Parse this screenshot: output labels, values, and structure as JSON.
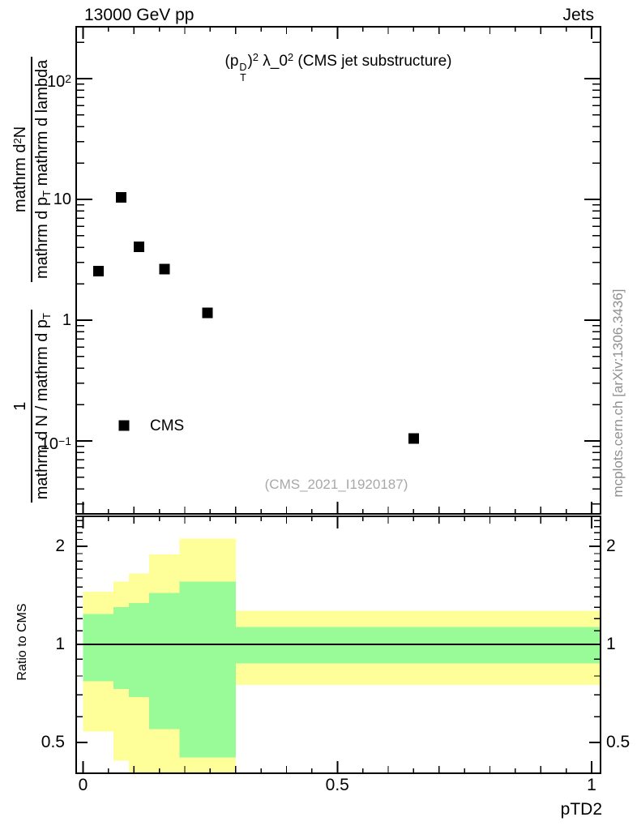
{
  "header": {
    "left": "13000 GeV pp",
    "right": "Jets"
  },
  "title": {
    "open": "(p",
    "p_sup": "D",
    "p_sub": "T",
    "close": ")",
    "exp1": "2",
    "mid": " λ_0",
    "exp2": "2",
    "rest": " (CMS jet substructure)"
  },
  "ylabel": {
    "f1_num": "1",
    "f1_den": "mathrm d N / mathrm d p",
    "f1_den_sub": "T",
    "f2_num_a": "mathrm d",
    "f2_num_sup": "2",
    "f2_num_b": "N",
    "f2_den_a": "mathrm d p",
    "f2_den_sub": "T",
    "f2_den_b": " mathrm d lambda"
  },
  "legend": {
    "label": "CMS",
    "marker": "filled-square",
    "marker_color": "#000000"
  },
  "watermark": "(CMS_2021_I1920187)",
  "side_note": "mcplots.cern.ch [arXiv:1306.3436]",
  "ratio_label": "Ratio to CMS",
  "xlabel": "pTD2",
  "colors": {
    "band_total": "#feff99",
    "band_stat": "#99fb98",
    "marker": "#000000",
    "frame": "#000000",
    "gray_text": "#8f8f8f"
  },
  "chart_data": {
    "type": "scatter",
    "title": "(p_T^D)^2 λ_0^2 (CMS jet substructure)",
    "xlabel": "pTD2",
    "ylabel": "1/(mathrm d N / mathrm d p_T) mathrm d^2 N /(mathrm d p_T mathrm d lambda)",
    "x_range": [
      -0.0135,
      1.0175
    ],
    "y_scale": "log",
    "y_range": [
      0.025,
      269
    ],
    "grid": false,
    "legend_position": "inside-left-bottom",
    "x_ticks": [
      {
        "v": 0,
        "label": "0"
      },
      {
        "v": 0.5,
        "label": "0.5"
      },
      {
        "v": 1,
        "label": "1"
      }
    ],
    "y_ticks": [
      {
        "v": 100,
        "base": "10",
        "sup": "2"
      },
      {
        "v": 10,
        "base": "10",
        "sup": ""
      },
      {
        "v": 1,
        "base": "1",
        "sup": ""
      },
      {
        "v": 0.1,
        "base": "10",
        "sup": "−1"
      }
    ],
    "series": [
      {
        "name": "CMS",
        "marker": "filled-square",
        "color": "#000000",
        "x": [
          0.03,
          0.075,
          0.11,
          0.16,
          0.245,
          0.65
        ],
        "y": [
          2.55,
          10.4,
          4.05,
          2.65,
          1.15,
          0.105
        ]
      }
    ],
    "ratio_panel": {
      "ylabel": "Ratio to CMS",
      "y_scale": "log",
      "y_range": [
        0.402,
        2.47
      ],
      "reference_line": 1,
      "y_ticks": [
        {
          "v": 2,
          "label": "2"
        },
        {
          "v": 1,
          "label": "1"
        },
        {
          "v": 0.5,
          "label": "0.5"
        }
      ],
      "bin_edges": [
        0,
        0.06,
        0.09,
        0.13,
        0.19,
        0.3,
        1.0
      ],
      "band_total": {
        "color": "#feff99",
        "hi": [
          1.45,
          1.56,
          1.65,
          1.89,
          2.11,
          1.27
        ],
        "lo": [
          0.54,
          0.44,
          0.405,
          0.39,
          0.37,
          0.75
        ]
      },
      "band_stat": {
        "color": "#99fb98",
        "hi": [
          1.24,
          1.3,
          1.34,
          1.44,
          1.56,
          1.13
        ],
        "lo": [
          0.77,
          0.73,
          0.69,
          0.55,
          0.45,
          0.875
        ]
      }
    }
  }
}
